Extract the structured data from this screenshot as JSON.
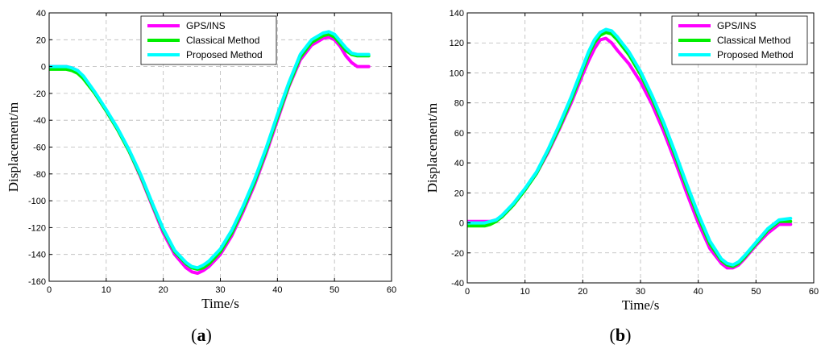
{
  "chart_data": [
    {
      "type": "line",
      "panel_label": "a",
      "xlabel": "Time/s",
      "ylabel": "Displacement/m",
      "xlim": [
        0,
        60
      ],
      "ylim": [
        -160,
        40
      ],
      "xticks": [
        0,
        10,
        20,
        30,
        40,
        50,
        60
      ],
      "yticks": [
        -160,
        -140,
        -120,
        -100,
        -80,
        -60,
        -40,
        -20,
        0,
        20,
        40
      ],
      "grid": true,
      "legend_position": "top-right",
      "series": [
        {
          "name": "GPS/INS",
          "color": "#ff00ff",
          "x": [
            0,
            3,
            4,
            5,
            6,
            8,
            10,
            12,
            14,
            16,
            18,
            20,
            22,
            24,
            25,
            26,
            27,
            28,
            30,
            32,
            34,
            36,
            38,
            40,
            42,
            44,
            46,
            48,
            49,
            50,
            51,
            52,
            53,
            54,
            56
          ],
          "y": [
            0,
            0,
            -1,
            -3,
            -8,
            -20,
            -33,
            -47,
            -63,
            -82,
            -103,
            -124,
            -140,
            -150,
            -153,
            -154,
            -152,
            -149,
            -140,
            -126,
            -108,
            -88,
            -65,
            -40,
            -15,
            5,
            16,
            21,
            22,
            20,
            15,
            8,
            3,
            0,
            0
          ]
        },
        {
          "name": "Classical Method",
          "color": "#00ee00",
          "x": [
            0,
            3,
            4,
            5,
            6,
            8,
            10,
            12,
            14,
            16,
            18,
            20,
            22,
            24,
            25,
            26,
            27,
            28,
            30,
            32,
            34,
            36,
            38,
            40,
            42,
            44,
            46,
            48,
            49,
            50,
            51,
            52,
            53,
            54,
            56
          ],
          "y": [
            -2,
            -2,
            -3,
            -5,
            -9,
            -20,
            -33,
            -47,
            -63,
            -81,
            -102,
            -122,
            -138,
            -147,
            -150,
            -151,
            -150,
            -147,
            -138,
            -124,
            -106,
            -86,
            -63,
            -38,
            -14,
            7,
            18,
            23,
            24,
            22,
            17,
            12,
            9,
            8,
            8
          ]
        },
        {
          "name": "Proposed Method",
          "color": "#00ffff",
          "x": [
            0,
            3,
            4,
            5,
            6,
            8,
            10,
            12,
            14,
            16,
            18,
            20,
            22,
            24,
            25,
            26,
            27,
            28,
            30,
            32,
            34,
            36,
            38,
            40,
            42,
            44,
            46,
            48,
            49,
            50,
            51,
            52,
            53,
            54,
            56
          ],
          "y": [
            0,
            0,
            -1,
            -3,
            -7,
            -19,
            -32,
            -46,
            -62,
            -80,
            -101,
            -121,
            -137,
            -146,
            -149,
            -150,
            -148,
            -145,
            -136,
            -122,
            -104,
            -84,
            -61,
            -36,
            -12,
            9,
            20,
            25,
            26,
            24,
            19,
            14,
            10,
            9,
            9
          ]
        }
      ]
    },
    {
      "type": "line",
      "panel_label": "b",
      "xlabel": "Time/s",
      "ylabel": "Displacement/m",
      "xlim": [
        0,
        60
      ],
      "ylim": [
        -40,
        140
      ],
      "xticks": [
        0,
        10,
        20,
        30,
        40,
        50,
        60
      ],
      "yticks": [
        -40,
        -20,
        0,
        20,
        40,
        60,
        80,
        100,
        120,
        140
      ],
      "grid": true,
      "legend_position": "top-right",
      "series": [
        {
          "name": "GPS/INS",
          "color": "#ff00ff",
          "x": [
            0,
            3,
            4,
            5,
            6,
            8,
            10,
            12,
            14,
            16,
            18,
            20,
            21,
            22,
            23,
            24,
            25,
            26,
            28,
            30,
            32,
            34,
            36,
            38,
            40,
            42,
            44,
            45,
            46,
            47,
            48,
            50,
            52,
            54,
            56
          ],
          "y": [
            1,
            1,
            1,
            2,
            4,
            12,
            22,
            33,
            47,
            63,
            80,
            99,
            108,
            116,
            122,
            123,
            120,
            115,
            106,
            94,
            79,
            61,
            41,
            20,
            0,
            -17,
            -27,
            -30,
            -30,
            -28,
            -24,
            -15,
            -7,
            -1,
            -1
          ]
        },
        {
          "name": "Classical Method",
          "color": "#00ee00",
          "x": [
            0,
            3,
            4,
            5,
            6,
            8,
            10,
            12,
            14,
            16,
            18,
            20,
            21,
            22,
            23,
            24,
            25,
            26,
            28,
            30,
            32,
            34,
            36,
            38,
            40,
            42,
            44,
            45,
            46,
            47,
            48,
            50,
            52,
            54,
            56
          ],
          "y": [
            -2,
            -2,
            -1,
            1,
            4,
            12,
            22,
            33,
            48,
            64,
            82,
            102,
            112,
            120,
            125,
            127,
            126,
            122,
            112,
            99,
            83,
            65,
            45,
            24,
            4,
            -14,
            -25,
            -28,
            -29,
            -27,
            -23,
            -14,
            -5,
            1,
            1
          ]
        },
        {
          "name": "Proposed Method",
          "color": "#00ffff",
          "x": [
            0,
            3,
            4,
            5,
            6,
            8,
            10,
            12,
            14,
            16,
            18,
            20,
            21,
            22,
            23,
            24,
            25,
            26,
            28,
            30,
            32,
            34,
            36,
            38,
            40,
            42,
            44,
            45,
            46,
            47,
            48,
            50,
            52,
            54,
            56
          ],
          "y": [
            0,
            0,
            1,
            2,
            5,
            13,
            23,
            34,
            49,
            66,
            84,
            104,
            114,
            122,
            127,
            129,
            128,
            124,
            114,
            101,
            85,
            67,
            47,
            26,
            6,
            -12,
            -24,
            -27,
            -28,
            -26,
            -22,
            -13,
            -4,
            2,
            3
          ]
        }
      ]
    }
  ]
}
